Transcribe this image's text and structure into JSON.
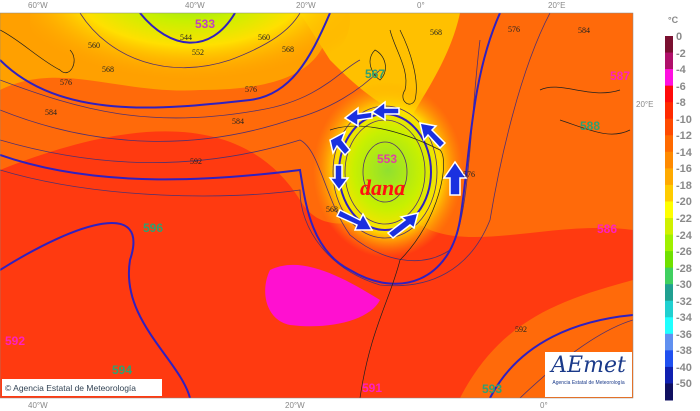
{
  "map": {
    "unit_label": "°C",
    "top_ticks": [
      "60°W",
      "40°W",
      "20°W",
      "0°",
      "20°E"
    ],
    "bottom_ticks": [
      "40°W",
      "20°W",
      "0°"
    ],
    "right_ticks": [
      "20°E"
    ],
    "feature_label": "dana",
    "centers": [
      {
        "value": "533",
        "color": "#c040c0"
      },
      {
        "value": "553",
        "color": "#e040a0"
      },
      {
        "value": "567",
        "color": "#30a070"
      },
      {
        "value": "587",
        "color": "#ff20c0"
      },
      {
        "value": "588",
        "color": "#30a070"
      },
      {
        "value": "586",
        "color": "#ff20c0"
      },
      {
        "value": "596",
        "color": "#30a070"
      },
      {
        "value": "592",
        "color": "#ff20c0"
      },
      {
        "value": "594",
        "color": "#30a070"
      },
      {
        "value": "591",
        "color": "#ff20c0"
      },
      {
        "value": "593",
        "color": "#30a070"
      }
    ],
    "contour_labels": [
      "544",
      "552",
      "560",
      "560",
      "568",
      "568",
      "576",
      "576",
      "584",
      "584",
      "592",
      "568",
      "576",
      "584",
      "568",
      "576",
      "592"
    ]
  },
  "colorbar": {
    "labels": [
      "0",
      "-2",
      "-4",
      "-6",
      "-8",
      "-10",
      "-12",
      "-14",
      "-16",
      "-18",
      "-20",
      "-22",
      "-24",
      "-26",
      "-28",
      "-30",
      "-32",
      "-34",
      "-36",
      "-38",
      "-40",
      "-50"
    ],
    "colors": [
      "#7a1030",
      "#b0106a",
      "#ff10e0",
      "#ff0a0a",
      "#ff2a00",
      "#ff4a00",
      "#ff6a00",
      "#ff8a00",
      "#ffaa00",
      "#ffcc00",
      "#ffff00",
      "#d0f000",
      "#a0f000",
      "#70e000",
      "#40d060",
      "#20a090",
      "#20d0d0",
      "#20ffff",
      "#6090f0",
      "#2050f0",
      "#1020b0",
      "#101060"
    ]
  },
  "footer": {
    "copyright": "© Agencia Estatal de Meteorología",
    "logo_text": "AEmet",
    "logo_sub": "Agencia Estatal de Meteorología"
  }
}
